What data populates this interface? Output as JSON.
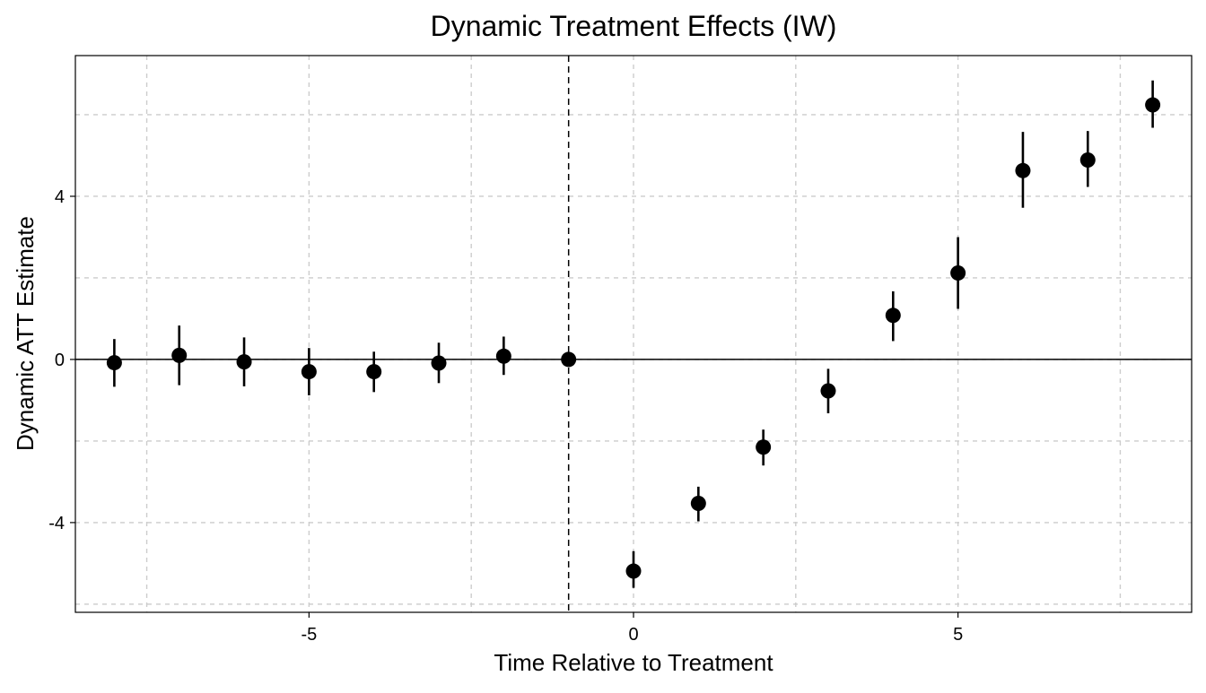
{
  "chart_data": {
    "type": "scatter",
    "title": "Dynamic Treatment Effects (IW)",
    "xlabel": "Time Relative to Treatment",
    "ylabel": "Dynamic ATT Estimate",
    "xlim": [
      -8.6,
      8.6
    ],
    "ylim": [
      -6.2,
      7.45
    ],
    "x_ticks": [
      -5,
      0,
      5
    ],
    "x_tick_labels": [
      "-5",
      "0",
      "5"
    ],
    "x_minor_grid": [
      -7.5,
      -2.5,
      2.5,
      7.5
    ],
    "y_ticks": [
      -4,
      0,
      4
    ],
    "y_tick_labels": [
      "-4",
      "0",
      "4"
    ],
    "y_minor_grid": [
      -6,
      -2,
      2,
      6
    ],
    "grid": true,
    "reference_hline": 0,
    "reference_vline": -1,
    "series": [
      {
        "x": [
          -8,
          -7,
          -6,
          -5,
          -4,
          -3,
          -2,
          -1,
          0,
          1,
          2,
          3,
          4,
          5,
          6,
          7,
          8
        ],
        "estimate": [
          -0.08,
          0.1,
          -0.06,
          -0.3,
          -0.3,
          -0.09,
          0.08,
          0.0,
          -5.19,
          -3.53,
          -2.15,
          -0.77,
          1.08,
          2.12,
          4.63,
          4.89,
          6.24
        ],
        "ci_lower": [
          -0.67,
          -0.63,
          -0.66,
          -0.88,
          -0.8,
          -0.58,
          -0.38,
          0.0,
          -5.6,
          -3.97,
          -2.6,
          -1.32,
          0.45,
          1.24,
          3.72,
          4.23,
          5.68
        ],
        "ci_upper": [
          0.5,
          0.83,
          0.54,
          0.28,
          0.19,
          0.41,
          0.56,
          0.0,
          -4.7,
          -3.12,
          -1.72,
          -0.23,
          1.67,
          3.0,
          5.58,
          5.6,
          6.84
        ]
      }
    ],
    "colors": {
      "points": "#000000",
      "grid": "#cccccc",
      "axis": "#000000"
    }
  }
}
